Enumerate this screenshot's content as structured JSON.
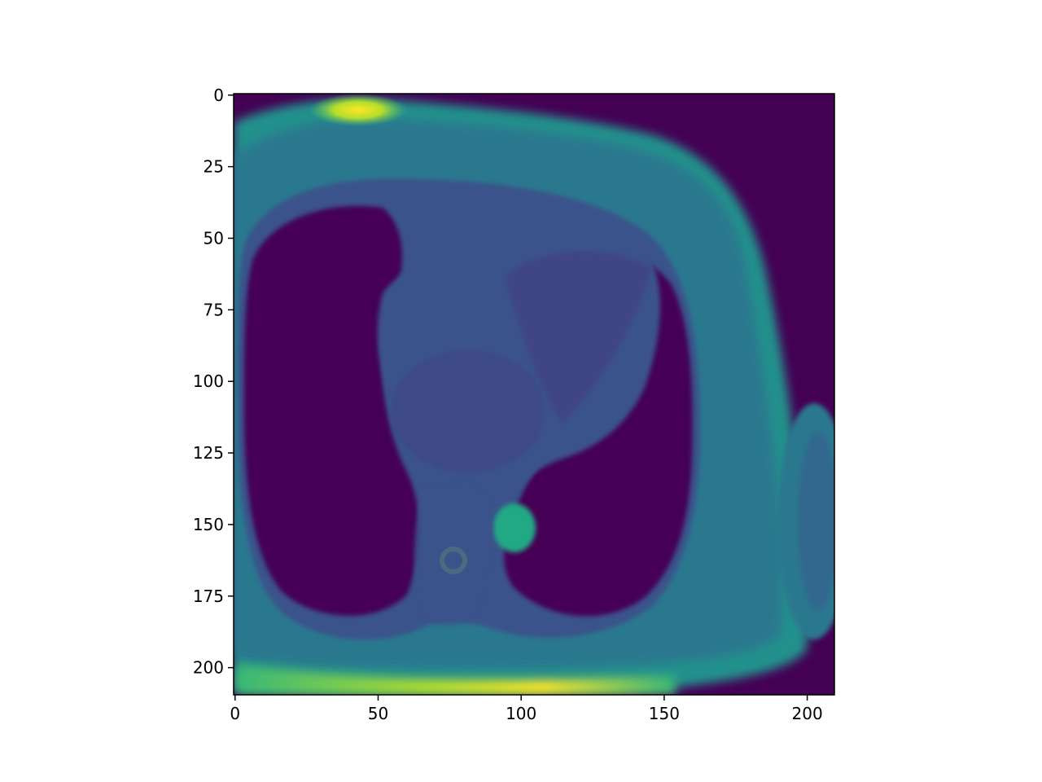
{
  "figure": {
    "type": "image-plot",
    "subject": "cardiac MRI axial slice",
    "colormap": "viridis",
    "colors": {
      "background": "#440154",
      "tissue_dim": "#3b528b",
      "tissue_mid": "#21918c",
      "tissue_bright": "#5ec962",
      "hotspot": "#fde725",
      "axis": "#000000"
    }
  },
  "x_axis": {
    "ticks": [
      {
        "value": 0,
        "label": "0"
      },
      {
        "value": 50,
        "label": "50"
      },
      {
        "value": 100,
        "label": "100"
      },
      {
        "value": 150,
        "label": "150"
      },
      {
        "value": 200,
        "label": "200"
      }
    ],
    "range": [
      -0.5,
      209.5
    ]
  },
  "y_axis": {
    "ticks": [
      {
        "value": 0,
        "label": "0"
      },
      {
        "value": 25,
        "label": "25"
      },
      {
        "value": 50,
        "label": "50"
      },
      {
        "value": 75,
        "label": "75"
      },
      {
        "value": 100,
        "label": "100"
      },
      {
        "value": 125,
        "label": "125"
      },
      {
        "value": 150,
        "label": "150"
      },
      {
        "value": 175,
        "label": "175"
      },
      {
        "value": 200,
        "label": "200"
      }
    ],
    "range": [
      -0.5,
      209.5
    ],
    "inverted": true
  }
}
